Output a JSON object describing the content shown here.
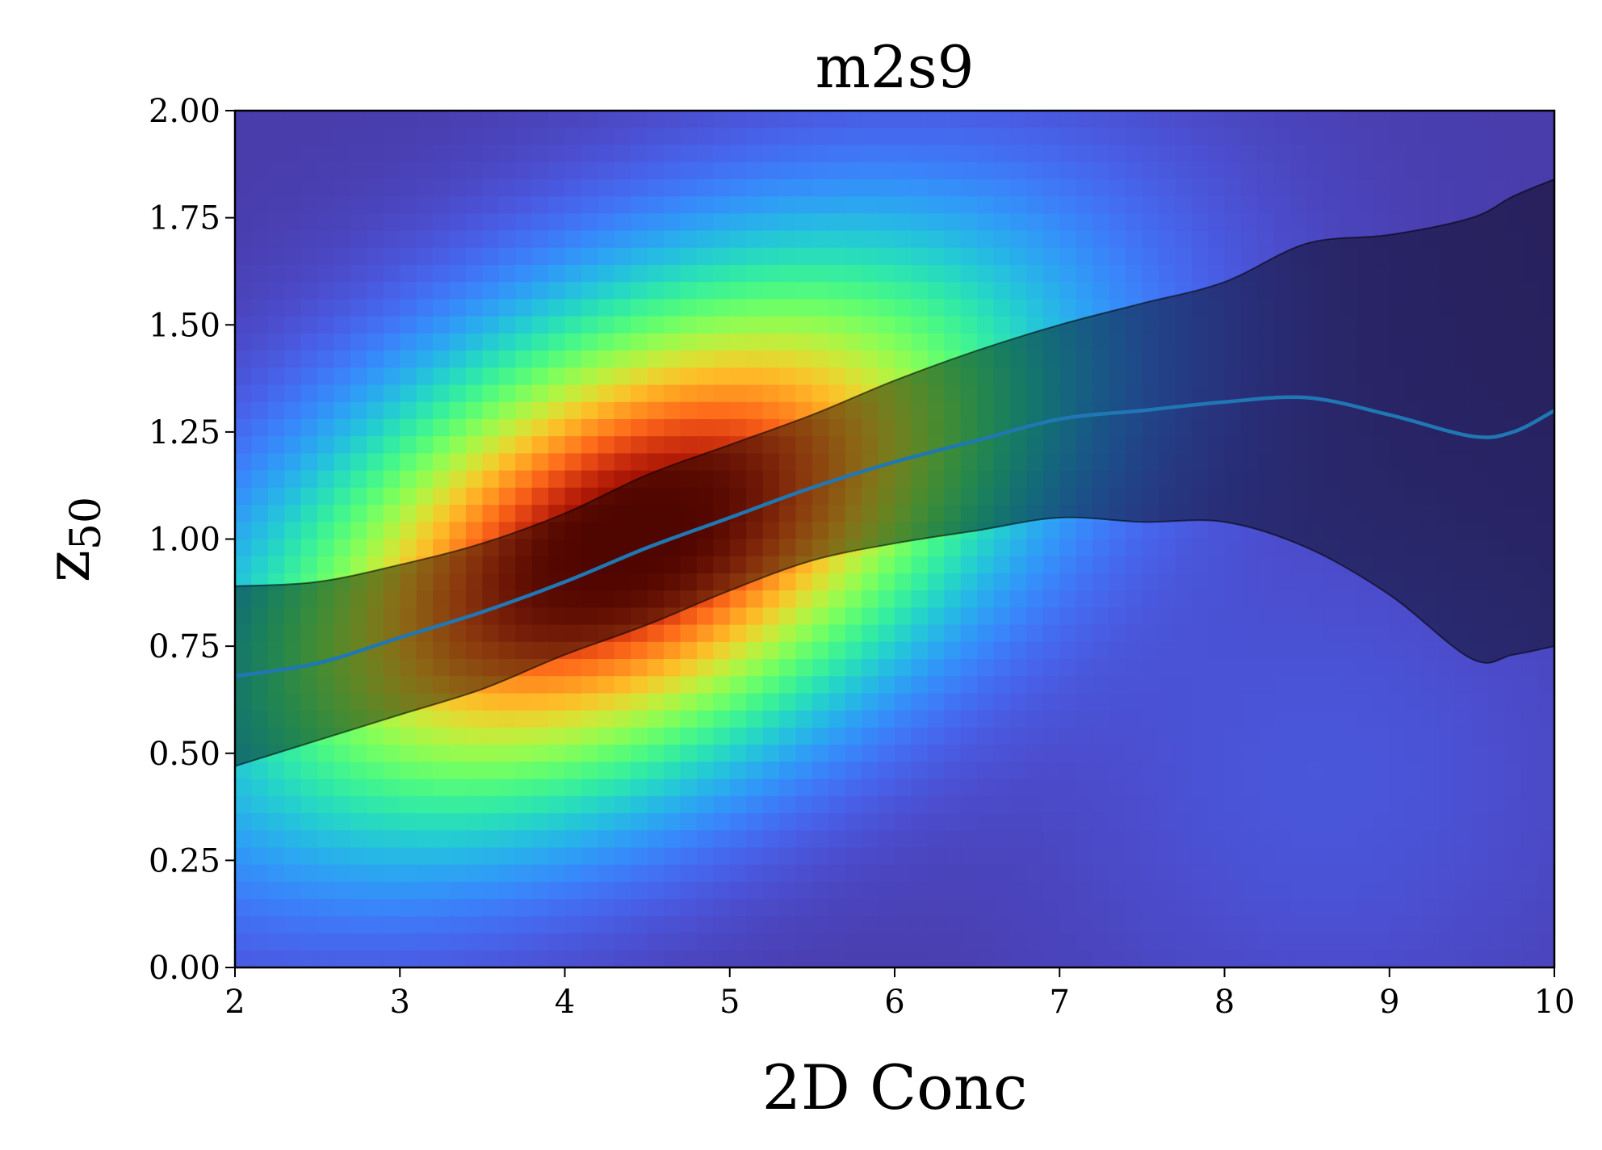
{
  "chart_data": {
    "type": "heatmap",
    "title": "m2s9",
    "xlabel": "2D Conc",
    "ylabel": "z",
    "ylabel_subscript": "50",
    "xlim": [
      2,
      10
    ],
    "ylim": [
      0,
      2
    ],
    "x_ticks": [
      2,
      3,
      4,
      5,
      6,
      7,
      8,
      9,
      10
    ],
    "x_tick_labels": [
      "2",
      "3",
      "4",
      "5",
      "6",
      "7",
      "8",
      "9",
      "10"
    ],
    "y_ticks": [
      0,
      0.25,
      0.5,
      0.75,
      1.0,
      1.25,
      1.5,
      1.75,
      2.0
    ],
    "y_tick_labels": [
      "0.00",
      "0.25",
      "0.50",
      "0.75",
      "1.00",
      "1.25",
      "1.50",
      "1.75",
      "2.00"
    ],
    "grid": false,
    "colormap": "turbo",
    "density_peaks": [
      {
        "x": 4.4,
        "y": 1.0,
        "relative_density": 1.0
      },
      {
        "x": 8.6,
        "y": 0.44,
        "relative_density": 0.04
      }
    ],
    "series": [
      {
        "kind": "line",
        "color": "#1f77b4",
        "x": [
          2.0,
          2.5,
          3.0,
          3.5,
          4.0,
          4.5,
          5.0,
          5.5,
          6.0,
          6.5,
          7.0,
          7.5,
          8.0,
          8.5,
          9.0,
          9.5,
          9.75,
          10.0
        ],
        "y": [
          0.68,
          0.71,
          0.77,
          0.83,
          0.9,
          0.98,
          1.05,
          1.12,
          1.18,
          1.23,
          1.28,
          1.3,
          1.32,
          1.33,
          1.29,
          1.24,
          1.25,
          1.3
        ]
      },
      {
        "kind": "band",
        "color": "#000000",
        "opacity": 0.45,
        "x": [
          2.0,
          2.5,
          3.0,
          3.5,
          4.0,
          4.5,
          5.0,
          5.5,
          6.0,
          6.5,
          7.0,
          7.5,
          8.0,
          8.5,
          9.0,
          9.5,
          9.75,
          10.0
        ],
        "lower": [
          0.47,
          0.53,
          0.59,
          0.65,
          0.73,
          0.8,
          0.88,
          0.95,
          0.99,
          1.02,
          1.05,
          1.04,
          1.04,
          0.98,
          0.87,
          0.72,
          0.73,
          0.75
        ],
        "upper": [
          0.89,
          0.9,
          0.94,
          0.99,
          1.06,
          1.15,
          1.22,
          1.29,
          1.37,
          1.44,
          1.5,
          1.55,
          1.6,
          1.69,
          1.71,
          1.75,
          1.8,
          1.84
        ]
      }
    ]
  }
}
